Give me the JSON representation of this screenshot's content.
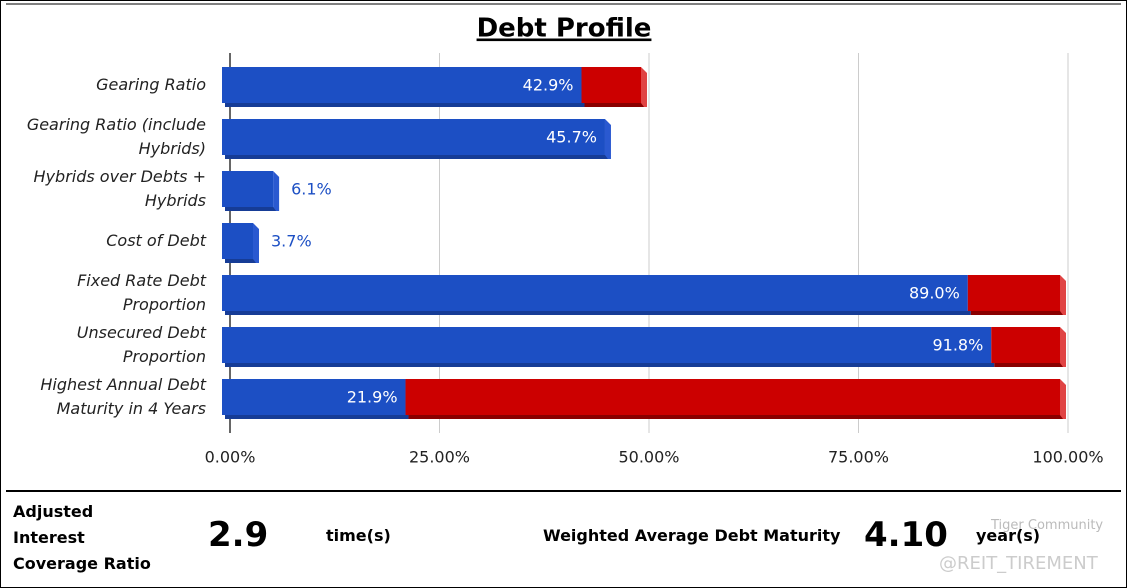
{
  "chart_data": {
    "type": "bar",
    "orientation": "horizontal",
    "stacked": true,
    "title": "Debt Profile",
    "categories": [
      "Gearing Ratio",
      "Gearing Ratio (include Hybrids)",
      "Hybrids over Debts + Hybrids",
      "Cost of Debt",
      "Fixed Rate Debt Proportion",
      "Unsecured Debt Proportion",
      "Highest Annual Debt Maturity in 4 Years"
    ],
    "series": [
      {
        "color": "#1c4fc4",
        "values": [
          42.9,
          45.7,
          6.1,
          3.7,
          89.0,
          91.8,
          21.9
        ],
        "value_labels": [
          "42.9%",
          "45.7%",
          "6.1%",
          "3.7%",
          "89.0%",
          "91.8%",
          "21.9%"
        ]
      },
      {
        "color": "#cc0000",
        "values": [
          7.1,
          0,
          0,
          0,
          11.0,
          8.2,
          78.1
        ]
      }
    ],
    "xlim": [
      0,
      100
    ],
    "xticks": [
      {
        "value": 0,
        "label": "0.00%"
      },
      {
        "value": 25,
        "label": "25.00%"
      },
      {
        "value": 50,
        "label": "50.00%"
      },
      {
        "value": 75,
        "label": "75.00%"
      },
      {
        "value": 100,
        "label": "100.00%"
      }
    ],
    "grid": true
  },
  "footer": {
    "icr_label": "Adjusted Interest Coverage Ratio",
    "icr_value": "2.9",
    "icr_unit": "time(s)",
    "wadm_label": "Weighted Average Debt Maturity",
    "wadm_value": "4.10",
    "wadm_unit": "year(s)"
  },
  "watermark": {
    "brand": "Tiger Community",
    "handle": "@REIT_TIREMENT"
  }
}
